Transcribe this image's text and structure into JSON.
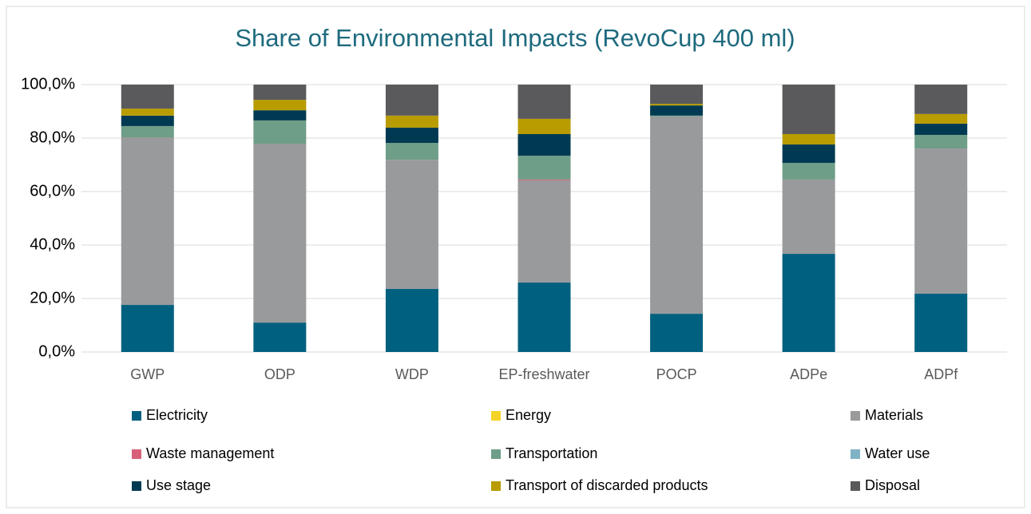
{
  "chart_data": {
    "type": "stacked_bar",
    "title": "Share of Environmental Impacts (RevoCup 400 ml)",
    "categories": [
      "GWP",
      "ODP",
      "WDP",
      "EP-freshwater",
      "POCP",
      "ADPe",
      "ADPf"
    ],
    "series": [
      {
        "name": "Electricity",
        "color": "#00607f",
        "values": [
          17.6,
          11.0,
          23.6,
          26.0,
          14.3,
          36.7,
          21.8
        ]
      },
      {
        "name": "Energy",
        "color": "#f5d327",
        "values": [
          0,
          0,
          0,
          0,
          0,
          0,
          0
        ]
      },
      {
        "name": "Materials",
        "color": "#999a9c",
        "values": [
          62.7,
          66.9,
          48.3,
          38.2,
          73.8,
          27.8,
          54.3
        ]
      },
      {
        "name": "Waste management",
        "color": "#d9607a",
        "values": [
          0,
          0,
          0,
          0.3,
          0,
          0,
          0
        ]
      },
      {
        "name": "Transportation",
        "color": "#6e9e87",
        "values": [
          4.2,
          8.7,
          6.3,
          8.9,
          0.3,
          6.2,
          5.1
        ]
      },
      {
        "name": "Water use",
        "color": "#7fb2c4",
        "values": [
          0,
          0,
          0,
          0,
          0,
          0,
          0
        ]
      },
      {
        "name": "Use stage",
        "color": "#003a52",
        "values": [
          3.9,
          3.8,
          5.7,
          8.1,
          3.8,
          6.9,
          4.2
        ]
      },
      {
        "name": "Transport of discarded products",
        "color": "#b89c00",
        "values": [
          2.6,
          3.9,
          4.5,
          5.7,
          0.6,
          3.9,
          3.6
        ]
      },
      {
        "name": "Disposal",
        "color": "#5a5a5c",
        "values": [
          9.0,
          5.7,
          11.6,
          12.8,
          7.2,
          18.5,
          11.0
        ]
      }
    ],
    "ylim": [
      0,
      100
    ],
    "yticks": [
      {
        "value": 0,
        "label": "0,0%"
      },
      {
        "value": 20,
        "label": "20,0%"
      },
      {
        "value": 40,
        "label": "40,0%"
      },
      {
        "value": 60,
        "label": "60,0%"
      },
      {
        "value": 80,
        "label": "80,0%"
      },
      {
        "value": 100,
        "label": "100,0%"
      }
    ],
    "grid": true
  }
}
